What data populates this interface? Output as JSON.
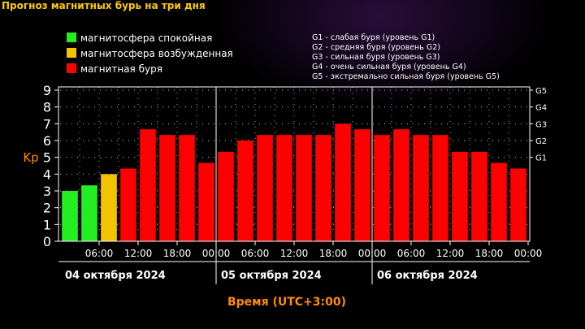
{
  "page_title": "Прогноз магнитных бурь на три дня",
  "colors": {
    "quiet": "#22ee22",
    "active": "#f2c400",
    "storm": "#ff0000",
    "axis_label": "#ff8c00"
  },
  "legend": {
    "items": [
      {
        "label": "магнитосфера спокойная",
        "color": "#22ee22"
      },
      {
        "label": "магнитосфера возбужденная",
        "color": "#f2c400"
      },
      {
        "label": "магнитная буря",
        "color": "#ff0000"
      }
    ],
    "storm_levels": [
      "G1 - слабая буря (уровень G1)",
      "G2 - средняя буря (уровень G2)",
      "G3 - сильная буря (уровень G3)",
      "G4 - очень сильная буря (уровень G4)",
      "G5 - экстремально сильная буря (уровень G5)"
    ]
  },
  "chart_data": {
    "type": "bar",
    "ylabel": "Kp",
    "xlabel": "Время (UTC+3:00)",
    "ylim": [
      0,
      9
    ],
    "yticks": [
      "0",
      "1",
      "2",
      "3",
      "4",
      "5",
      "6",
      "7",
      "8",
      "9"
    ],
    "right_ticks": [
      {
        "label": "G1",
        "value": 5
      },
      {
        "label": "G2",
        "value": 6
      },
      {
        "label": "G3",
        "value": 7
      },
      {
        "label": "G4",
        "value": 8
      },
      {
        "label": "G5",
        "value": 9
      }
    ],
    "time_labels": [
      "06:00",
      "12:00",
      "18:00",
      "00:00",
      "06:00",
      "12:00",
      "18:00",
      "00:00",
      "06:00",
      "12:00",
      "18:00",
      "00:00"
    ],
    "days": [
      "04 октября 2024",
      "05 октября 2024",
      "06 октября 2024"
    ],
    "values": [
      3.0,
      3.33,
      4.0,
      4.33,
      6.67,
      6.33,
      6.33,
      4.67,
      5.33,
      6.0,
      6.33,
      6.33,
      6.33,
      6.33,
      7.0,
      6.67,
      6.33,
      6.67,
      6.33,
      6.33,
      5.33,
      5.33,
      4.67,
      4.33
    ],
    "levels": [
      "quiet",
      "quiet",
      "active",
      "storm",
      "storm",
      "storm",
      "storm",
      "storm",
      "storm",
      "storm",
      "storm",
      "storm",
      "storm",
      "storm",
      "storm",
      "storm",
      "storm",
      "storm",
      "storm",
      "storm",
      "storm",
      "storm",
      "storm",
      "storm"
    ],
    "grid": true
  }
}
